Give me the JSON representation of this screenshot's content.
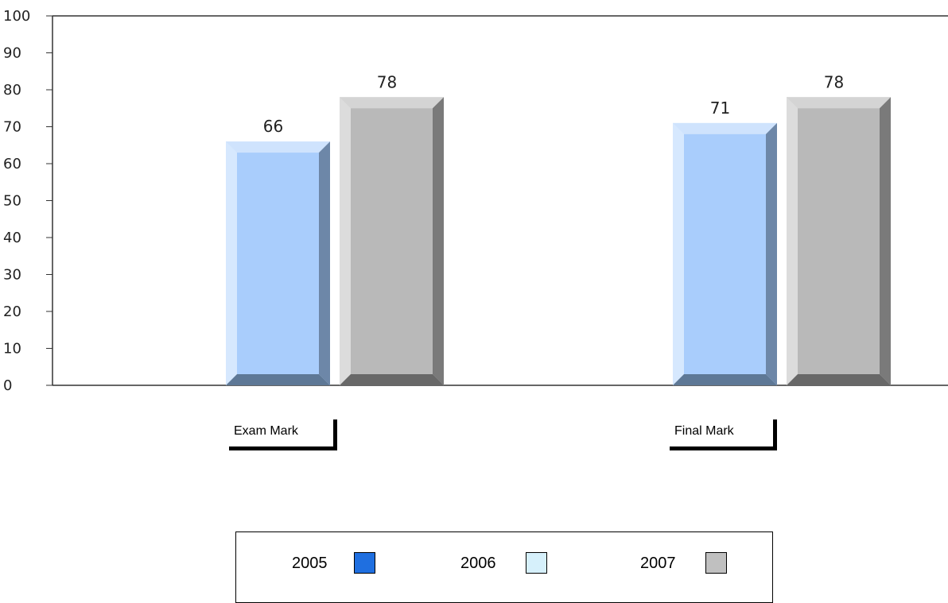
{
  "chart_data": {
    "type": "bar",
    "categories": [
      "Exam Mark",
      "Final Mark"
    ],
    "series": [
      {
        "name": "2005",
        "values": [
          null,
          null
        ],
        "color": "#1f6fe0"
      },
      {
        "name": "2006",
        "values": [
          66,
          71
        ],
        "color": "#a9cdfc"
      },
      {
        "name": "2007",
        "values": [
          78,
          78
        ],
        "color": "#b9b9b9"
      }
    ],
    "y_ticks": [
      "0",
      "10",
      "20",
      "30",
      "40",
      "50",
      "60",
      "70",
      "80",
      "90",
      "100"
    ],
    "ylim": [
      0,
      100
    ],
    "grid": false,
    "legend_position": "bottom-center"
  },
  "legend": {
    "items": [
      {
        "label": "2005",
        "color": "#1f6fe0"
      },
      {
        "label": "2006",
        "color": "#d6f0fb"
      },
      {
        "label": "2007",
        "color": "#c0c0c0"
      }
    ]
  }
}
